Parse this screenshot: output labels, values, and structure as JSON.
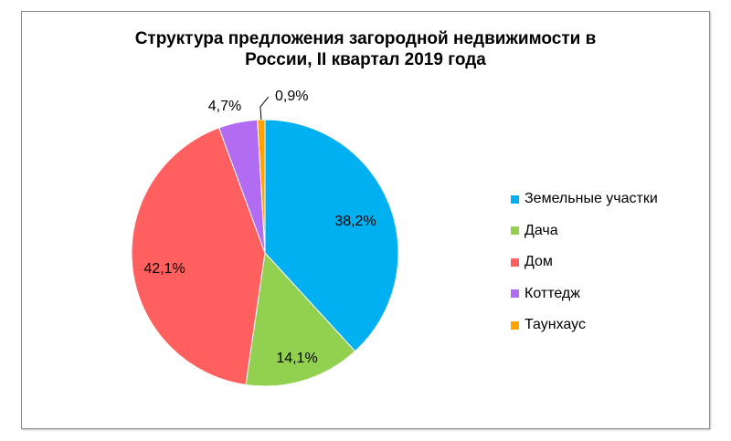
{
  "chart_data": {
    "type": "pie",
    "title_lines": [
      "Структура  предложения загородной недвижимости  в",
      "России, II квартал 2019  года"
    ],
    "slices": [
      {
        "label": "Земельные участки",
        "value": 38.2,
        "display": "38,2%",
        "color": "#00b0f0"
      },
      {
        "label": "Дача",
        "value": 14.1,
        "display": "14,1%",
        "color": "#92d050"
      },
      {
        "label": "Дом",
        "value": 42.1,
        "display": "42,1%",
        "color": "#ff5f5f"
      },
      {
        "label": "Коттедж",
        "value": 4.7,
        "display": "4,7%",
        "color": "#b26cf2"
      },
      {
        "label": "Таунхаус",
        "value": 0.9,
        "display": "0,9%",
        "color": "#ffa300"
      }
    ],
    "legend_position": "right",
    "start_angle": "12 o'clock",
    "direction": "clockwise"
  }
}
